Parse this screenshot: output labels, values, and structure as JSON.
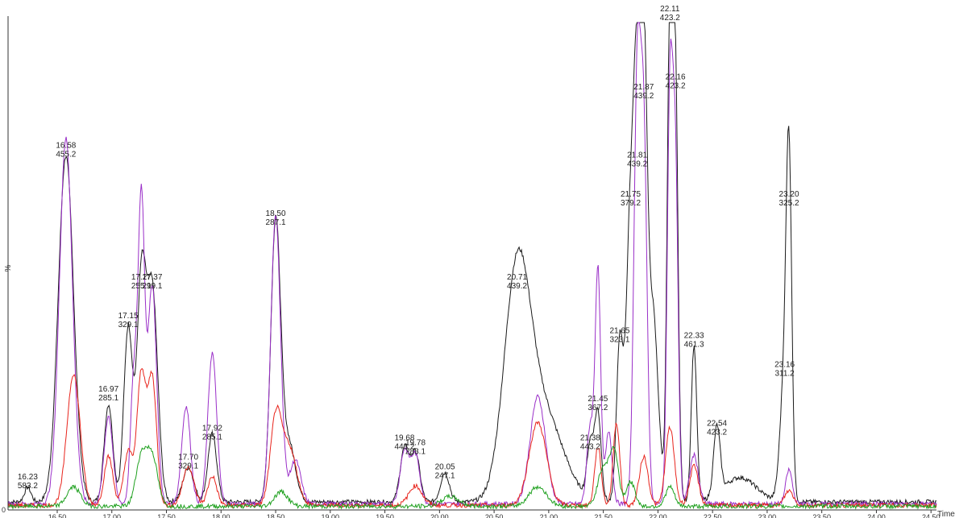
{
  "chart_data": {
    "type": "line",
    "title": "",
    "xlabel": "Time",
    "ylabel": "%",
    "xlim": [
      16.05,
      24.55
    ],
    "ylim": [
      0,
      100
    ],
    "x_ticks": [
      "16.50",
      "17.00",
      "17.50",
      "18.00",
      "18.50",
      "19.00",
      "19.50",
      "20.00",
      "20.50",
      "21.00",
      "21.50",
      "22.00",
      "22.50",
      "23.00",
      "23.50",
      "24.00",
      "24.50"
    ],
    "tick_values": [
      16.5,
      17.0,
      17.5,
      18.0,
      18.5,
      19.0,
      19.5,
      20.0,
      20.5,
      21.0,
      21.5,
      22.0,
      22.5,
      23.0,
      23.5,
      24.0,
      24.5
    ],
    "grid": false,
    "colors": {
      "black": "#1a1a1a",
      "purple": "#9a2fc8",
      "red": "#e8241c",
      "green": "#1ea01e",
      "olive": "#8a6a2a"
    },
    "peak_labels": [
      {
        "time": "16.23",
        "mass": "583.2",
        "rt": 16.23,
        "y": 4
      },
      {
        "time": "16.58",
        "mass": "455.2",
        "rt": 16.58,
        "y": 72
      },
      {
        "time": "16.97",
        "mass": "285.1",
        "rt": 16.97,
        "y": 22
      },
      {
        "time": "17.15",
        "mass": "329.1",
        "rt": 17.15,
        "y": 37
      },
      {
        "time": "17.27",
        "mass": "255.1",
        "rt": 17.27,
        "y": 45
      },
      {
        "time": "17.37",
        "mass": "299.1",
        "rt": 17.37,
        "y": 45
      },
      {
        "time": "17.70",
        "mass": "329.1",
        "rt": 17.7,
        "y": 8
      },
      {
        "time": "17.92",
        "mass": "285.1",
        "rt": 17.92,
        "y": 14
      },
      {
        "time": "18.50",
        "mass": "287.1",
        "rt": 18.5,
        "y": 58
      },
      {
        "time": "19.68",
        "mass": "443.2",
        "rt": 19.68,
        "y": 12
      },
      {
        "time": "19.78",
        "mass": "283.1",
        "rt": 19.78,
        "y": 11
      },
      {
        "time": "20.05",
        "mass": "247.1",
        "rt": 20.05,
        "y": 6
      },
      {
        "time": "20.71",
        "mass": "439.2",
        "rt": 20.71,
        "y": 45
      },
      {
        "time": "21.38",
        "mass": "443.2",
        "rt": 21.38,
        "y": 12
      },
      {
        "time": "21.45",
        "mass": "367.2",
        "rt": 21.45,
        "y": 20
      },
      {
        "time": "21.65",
        "mass": "323.1",
        "rt": 21.65,
        "y": 34
      },
      {
        "time": "21.75",
        "mass": "379.2",
        "rt": 21.75,
        "y": 62
      },
      {
        "time": "21.81",
        "mass": "439.2",
        "rt": 21.81,
        "y": 70
      },
      {
        "time": "21.87",
        "mass": "439.2",
        "rt": 21.87,
        "y": 84
      },
      {
        "time": "22.11",
        "mass": "423.2",
        "rt": 22.11,
        "y": 100
      },
      {
        "time": "22.16",
        "mass": "423.2",
        "rt": 22.16,
        "y": 86
      },
      {
        "time": "22.33",
        "mass": "461.3",
        "rt": 22.33,
        "y": 33
      },
      {
        "time": "22.54",
        "mass": "423.2",
        "rt": 22.54,
        "y": 15
      },
      {
        "time": "23.16",
        "mass": "311.2",
        "rt": 23.16,
        "y": 27
      },
      {
        "time": "23.20",
        "mass": "325.2",
        "rt": 23.2,
        "y": 62
      }
    ],
    "series": [
      {
        "color": "#1a1a1a",
        "baseline": 1.2,
        "peaks": [
          [
            16.23,
            3,
            0.03
          ],
          [
            16.58,
            71,
            0.07
          ],
          [
            16.97,
            20,
            0.04
          ],
          [
            17.15,
            36,
            0.04
          ],
          [
            17.27,
            44,
            0.04
          ],
          [
            17.37,
            44,
            0.05
          ],
          [
            17.7,
            7,
            0.05
          ],
          [
            17.92,
            14,
            0.04
          ],
          [
            18.5,
            57,
            0.045
          ],
          [
            18.62,
            12,
            0.06
          ],
          [
            19.68,
            11,
            0.04
          ],
          [
            19.78,
            10,
            0.04
          ],
          [
            20.05,
            6,
            0.04
          ],
          [
            20.71,
            44,
            0.12
          ],
          [
            20.95,
            18,
            0.18
          ],
          [
            21.38,
            11,
            0.03
          ],
          [
            21.45,
            18,
            0.03
          ],
          [
            21.65,
            32,
            0.03
          ],
          [
            21.75,
            60,
            0.04
          ],
          [
            21.81,
            68,
            0.03
          ],
          [
            21.87,
            83,
            0.03
          ],
          [
            21.95,
            40,
            0.05
          ],
          [
            22.11,
            99,
            0.025
          ],
          [
            22.16,
            85,
            0.025
          ],
          [
            22.33,
            32,
            0.025
          ],
          [
            22.54,
            14,
            0.03
          ],
          [
            22.75,
            5,
            0.15
          ],
          [
            23.16,
            26,
            0.04
          ],
          [
            23.2,
            61,
            0.025
          ]
        ]
      },
      {
        "color": "#9a2fc8",
        "baseline": 0.8,
        "peaks": [
          [
            16.58,
            75,
            0.06
          ],
          [
            16.97,
            18,
            0.04
          ],
          [
            17.2,
            25,
            0.03
          ],
          [
            17.27,
            62,
            0.03
          ],
          [
            17.37,
            45,
            0.04
          ],
          [
            17.68,
            20,
            0.04
          ],
          [
            17.92,
            31,
            0.04
          ],
          [
            18.5,
            59,
            0.045
          ],
          [
            18.68,
            9,
            0.05
          ],
          [
            19.68,
            11,
            0.04
          ],
          [
            19.78,
            10,
            0.04
          ],
          [
            20.9,
            22,
            0.07
          ],
          [
            21.38,
            16,
            0.03
          ],
          [
            21.45,
            48,
            0.025
          ],
          [
            21.55,
            15,
            0.03
          ],
          [
            21.81,
            86,
            0.03
          ],
          [
            21.87,
            74,
            0.03
          ],
          [
            22.11,
            83,
            0.025
          ],
          [
            22.16,
            68,
            0.025
          ],
          [
            22.33,
            10,
            0.04
          ],
          [
            23.2,
            7,
            0.03
          ]
        ]
      },
      {
        "color": "#e8241c",
        "baseline": 0.5,
        "peaks": [
          [
            16.65,
            27,
            0.06
          ],
          [
            16.97,
            10,
            0.04
          ],
          [
            17.15,
            11,
            0.04
          ],
          [
            17.27,
            27,
            0.04
          ],
          [
            17.37,
            26,
            0.04
          ],
          [
            17.7,
            8,
            0.05
          ],
          [
            17.92,
            6,
            0.04
          ],
          [
            18.5,
            17,
            0.05
          ],
          [
            18.62,
            12,
            0.07
          ],
          [
            19.78,
            4,
            0.06
          ],
          [
            20.9,
            17,
            0.08
          ],
          [
            21.45,
            12,
            0.03
          ],
          [
            21.62,
            17,
            0.03
          ],
          [
            21.87,
            10,
            0.04
          ],
          [
            22.11,
            16,
            0.04
          ],
          [
            22.33,
            8,
            0.04
          ],
          [
            23.2,
            3,
            0.04
          ]
        ]
      },
      {
        "color": "#1ea01e",
        "baseline": 0.3,
        "peaks": [
          [
            16.65,
            4,
            0.06
          ],
          [
            17.27,
            10,
            0.05
          ],
          [
            17.37,
            10,
            0.05
          ],
          [
            18.55,
            3,
            0.06
          ],
          [
            20.1,
            2,
            0.08
          ],
          [
            20.9,
            4,
            0.08
          ],
          [
            21.5,
            8,
            0.05
          ],
          [
            21.6,
            11,
            0.04
          ],
          [
            21.75,
            5,
            0.04
          ],
          [
            22.11,
            4,
            0.04
          ]
        ]
      }
    ]
  }
}
